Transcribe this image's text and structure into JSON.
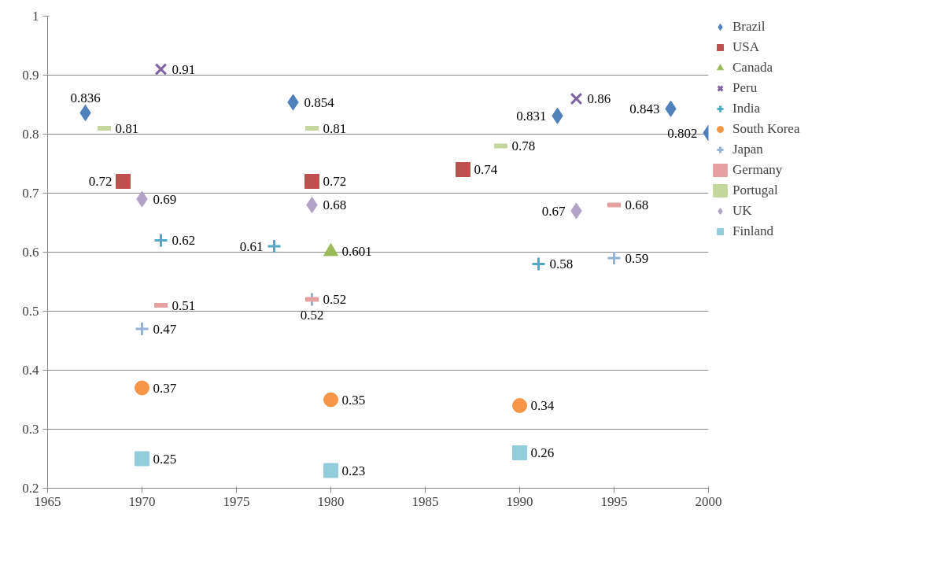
{
  "chart_data": {
    "type": "scatter",
    "xlim": [
      1965,
      2000
    ],
    "xticks": [
      1965,
      1970,
      1975,
      1980,
      1985,
      1990,
      1995,
      2000
    ],
    "ylim": [
      0.2,
      1
    ],
    "yticks": [
      0.2,
      0.3,
      0.4,
      0.5,
      0.6,
      0.7,
      0.8,
      0.9,
      1
    ],
    "grid": "y",
    "legend": "right",
    "data_labels": true,
    "series": [
      {
        "name": "Brazil",
        "color": "#4f81bd",
        "marker": "diamond",
        "x": [
          1967,
          1978,
          1992,
          1998,
          2000
        ],
        "values": [
          0.836,
          0.854,
          0.831,
          0.843,
          0.802
        ]
      },
      {
        "name": "USA",
        "color": "#c0504d",
        "marker": "square",
        "x": [
          1969,
          1979,
          1987
        ],
        "values": [
          0.72,
          0.72,
          0.74
        ]
      },
      {
        "name": "Canada",
        "color": "#9bbb59",
        "marker": "triangle",
        "x": [
          1980
        ],
        "values": [
          0.601
        ]
      },
      {
        "name": "Peru",
        "color": "#8064a2",
        "marker": "x",
        "x": [
          1971,
          1993
        ],
        "values": [
          0.91,
          0.86
        ]
      },
      {
        "name": "India",
        "color": "#4bacc6",
        "marker": "cross",
        "x": [
          1971,
          1977,
          1991
        ],
        "values": [
          0.62,
          0.61,
          0.58
        ]
      },
      {
        "name": "South Korea",
        "color": "#f79646",
        "marker": "circle",
        "x": [
          1970,
          1980,
          1990
        ],
        "values": [
          0.37,
          0.35,
          0.34
        ]
      },
      {
        "name": "Japan",
        "color": "#95b3d7",
        "marker": "cross",
        "x": [
          1970,
          1979,
          1995
        ],
        "values": [
          0.47,
          0.52,
          0.59
        ]
      },
      {
        "name": "Germany",
        "color": "#e6a0a0",
        "x": [
          1971,
          1979,
          1995
        ],
        "values": [
          0.51,
          0.52,
          0.68
        ]
      },
      {
        "name": "Portugal",
        "color": "#c3d69b",
        "x": [
          1968,
          1979,
          1989
        ],
        "values": [
          0.81,
          0.81,
          0.78
        ]
      },
      {
        "name": "UK",
        "color": "#b3a2c7",
        "marker": "diamond",
        "x": [
          1970,
          1979,
          1993
        ],
        "values": [
          0.69,
          0.68,
          0.67
        ]
      },
      {
        "name": "Finland",
        "color": "#92cddc",
        "marker": "square",
        "x": [
          1970,
          1980,
          1990
        ],
        "values": [
          0.25,
          0.23,
          0.26
        ]
      }
    ]
  }
}
